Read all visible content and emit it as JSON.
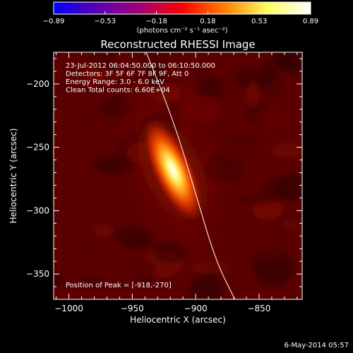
{
  "chart_data": {
    "type": "heatmap",
    "title": "Reconstructed RHESSI Image",
    "xlabel": "Heliocentric X (arcsec)",
    "ylabel": "Heliocentric Y (arcsec)",
    "xlim": [
      -1012,
      -816
    ],
    "ylim": [
      -370,
      -175
    ],
    "x_ticks": [
      {
        "value": -1000,
        "label": "−1000"
      },
      {
        "value": -950,
        "label": "−950"
      },
      {
        "value": -900,
        "label": "−900"
      },
      {
        "value": -850,
        "label": "−850"
      }
    ],
    "y_ticks": [
      {
        "value": -200,
        "label": "−200"
      },
      {
        "value": -250,
        "label": "−250"
      },
      {
        "value": -300,
        "label": "−300"
      },
      {
        "value": -350,
        "label": "−350"
      }
    ],
    "colorbar": {
      "min": -0.89,
      "max": 0.89,
      "ticks": [
        "−0.89",
        "−0.53",
        "−0.18",
        "0.18",
        "0.53",
        "0.89"
      ],
      "units_label": "(photons cm⁻² s⁻¹ asec⁻²)",
      "colors": [
        "#0000ff",
        "#5a00b4",
        "#a00078",
        "#ff0000",
        "#ff8000",
        "#ffff60",
        "#ffffff"
      ]
    },
    "info_lines": [
      "23-Jul-2012 06:04:50.000 to 06:10:50.000",
      "Detectors: 3F 5F 6F 7F 8F 9F, Att 0",
      "Energy Range: 3.0 - 6.0 keV",
      "Clean    Total counts: 6.60E+04"
    ],
    "peak_text": "Position of Peak = [-918,-270]",
    "peak": {
      "x": -918,
      "y": -270,
      "value": 0.89
    },
    "source": {
      "x": -918,
      "y": -268,
      "sigma_major": 22,
      "sigma_minor": 7,
      "angle_deg": -25
    },
    "limb_curve": [
      {
        "x": -943,
        "y": -165
      },
      {
        "x": -917,
        "y": -230
      },
      {
        "x": -899,
        "y": -290
      },
      {
        "x": -884,
        "y": -340
      },
      {
        "x": -869,
        "y": -370
      }
    ]
  },
  "date_stamp": "6-May-2014 05:57"
}
